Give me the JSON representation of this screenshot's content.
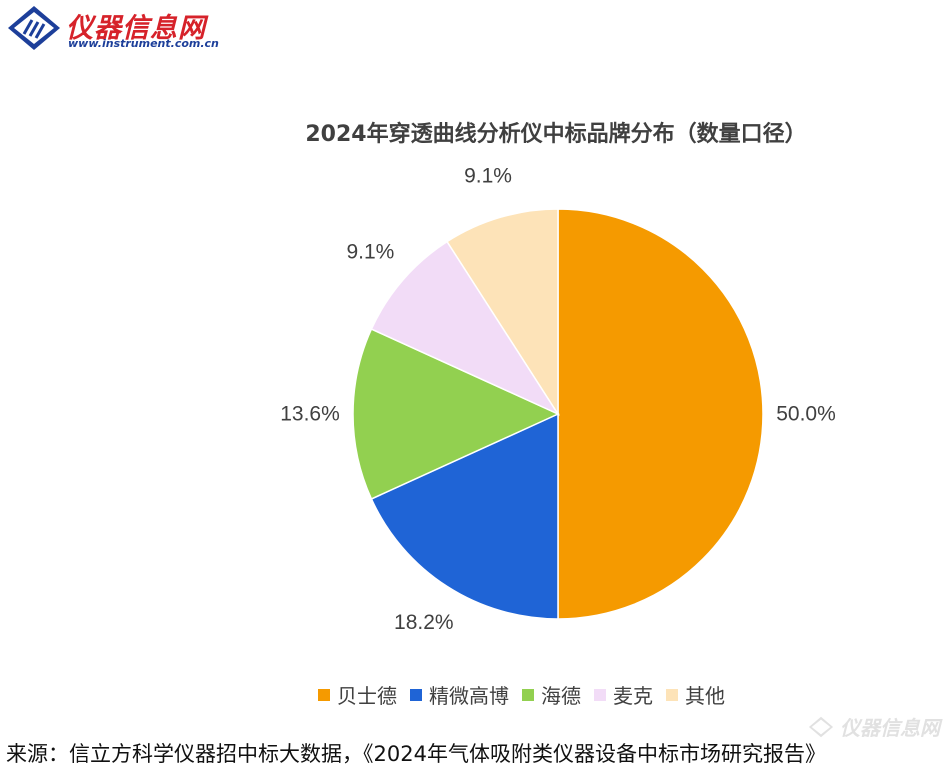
{
  "logo": {
    "name": "仪器信息网",
    "url": "www.instrument.com.cn"
  },
  "watermark": {
    "text": "仪器信息网"
  },
  "source": "来源：信立方科学仪器招中标大数据，《2024年气体吸附类仪器设备中标市场研究报告》",
  "chart_data": {
    "type": "pie",
    "title": "2024年穿透曲线分析仪中标品牌分布（数量口径）",
    "start_angle_deg": 0,
    "direction": "clockwise",
    "legend_position": "bottom",
    "slices": [
      {
        "label": "贝士德",
        "value": 50.0,
        "display": "50.0%",
        "color": "#F59A00"
      },
      {
        "label": "精微高博",
        "value": 18.2,
        "display": "18.2%",
        "color": "#1F64D6"
      },
      {
        "label": "海德",
        "value": 13.6,
        "display": "13.6%",
        "color": "#92D050"
      },
      {
        "label": "麦克",
        "value": 9.1,
        "display": "9.1%",
        "color": "#F2DCF7"
      },
      {
        "label": "其他",
        "value": 9.1,
        "display": "9.1%",
        "color": "#FDE3B8"
      }
    ]
  }
}
